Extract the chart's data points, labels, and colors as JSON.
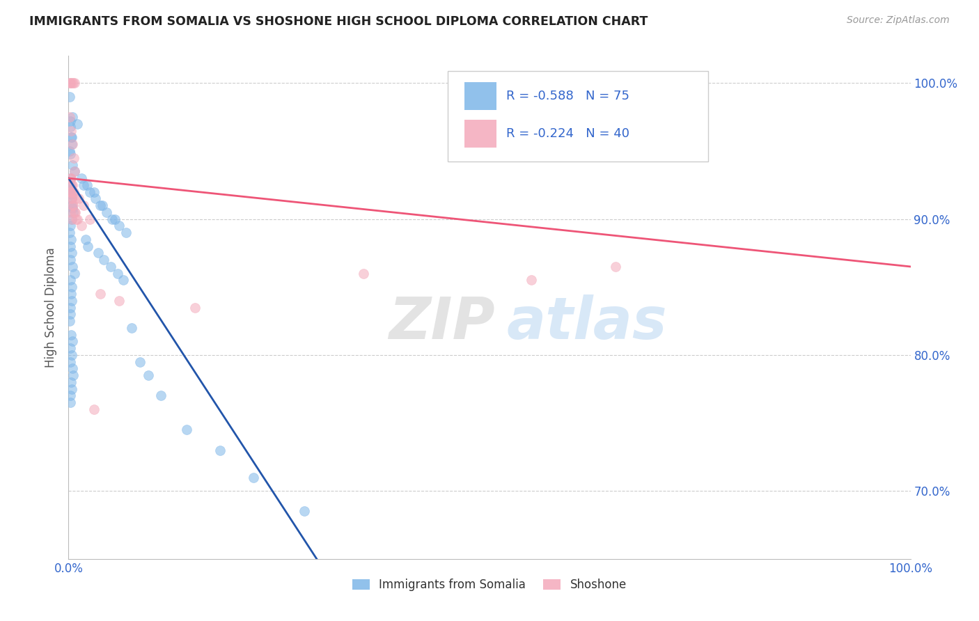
{
  "title": "IMMIGRANTS FROM SOMALIA VS SHOSHONE HIGH SCHOOL DIPLOMA CORRELATION CHART",
  "source_text": "Source: ZipAtlas.com",
  "ylabel": "High School Diploma",
  "blue_label": "Immigrants from Somalia",
  "pink_label": "Shoshone",
  "blue_R": "-0.588",
  "blue_N": "75",
  "pink_R": "-0.224",
  "pink_N": "40",
  "blue_color": "#7EB6E8",
  "pink_color": "#F4AABB",
  "blue_line_color": "#2255AA",
  "pink_line_color": "#EE5577",
  "watermark_zip": "ZIP",
  "watermark_atlas": "atlas",
  "background_color": "#FFFFFF",
  "legend_text_color": "#3366CC",
  "title_color": "#222222",
  "blue_scatter_x": [
    0.15,
    0.5,
    1.0,
    0.3,
    0.2,
    0.25,
    0.4,
    0.35,
    0.2,
    0.45,
    0.7,
    0.15,
    0.25,
    0.2,
    0.3,
    0.35,
    0.45,
    0.55,
    0.25,
    0.4,
    0.35,
    0.2,
    0.15,
    0.3,
    0.25,
    0.35,
    0.2,
    0.45,
    0.7,
    0.25,
    0.35,
    0.3,
    0.4,
    0.25,
    0.2,
    0.15,
    0.3,
    0.5,
    0.2,
    0.35,
    0.25,
    0.45,
    0.55,
    0.3,
    0.4,
    0.25,
    0.2,
    1.8,
    2.5,
    3.2,
    3.8,
    4.5,
    5.2,
    6.0,
    1.5,
    2.2,
    3.0,
    4.0,
    5.5,
    6.8,
    2.0,
    2.3,
    3.5,
    4.2,
    5.0,
    5.8,
    6.5,
    7.5,
    8.5,
    9.5,
    11.0,
    14.0,
    18.0,
    22.0,
    28.0
  ],
  "blue_scatter_y": [
    99.0,
    97.5,
    97.0,
    96.0,
    97.2,
    96.8,
    96.0,
    95.5,
    94.8,
    94.0,
    93.5,
    95.0,
    93.0,
    92.5,
    91.8,
    91.5,
    90.8,
    90.5,
    92.2,
    91.0,
    90.0,
    89.5,
    89.0,
    88.5,
    88.0,
    87.5,
    87.0,
    86.5,
    86.0,
    85.5,
    85.0,
    84.5,
    84.0,
    83.5,
    83.0,
    82.5,
    81.5,
    81.0,
    80.5,
    80.0,
    79.5,
    79.0,
    78.5,
    78.0,
    77.5,
    77.0,
    76.5,
    92.5,
    92.0,
    91.5,
    91.0,
    90.5,
    90.0,
    89.5,
    93.0,
    92.5,
    92.0,
    91.0,
    90.0,
    89.0,
    88.5,
    88.0,
    87.5,
    87.0,
    86.5,
    86.0,
    85.5,
    82.0,
    79.5,
    78.5,
    77.0,
    74.5,
    73.0,
    71.0,
    68.5
  ],
  "pink_scatter_x": [
    0.1,
    0.25,
    0.4,
    0.55,
    0.7,
    0.15,
    0.3,
    0.45,
    0.6,
    0.75,
    0.2,
    0.35,
    0.5,
    0.8,
    1.0,
    0.2,
    0.35,
    0.5,
    1.2,
    1.8,
    2.5,
    3.8,
    6.0,
    15.0,
    35.0,
    55.0,
    0.25,
    0.4,
    0.55,
    0.7,
    0.85,
    0.3,
    0.45,
    0.6,
    0.9,
    0.25,
    0.4,
    1.5,
    3.0,
    65.0
  ],
  "pink_scatter_y": [
    100.0,
    100.0,
    100.0,
    100.0,
    100.0,
    97.5,
    96.5,
    95.5,
    94.5,
    93.5,
    92.0,
    91.5,
    91.0,
    90.5,
    90.0,
    93.0,
    92.5,
    92.0,
    91.5,
    91.0,
    90.0,
    84.5,
    84.0,
    83.5,
    86.0,
    85.5,
    92.0,
    91.5,
    91.0,
    90.5,
    90.0,
    93.0,
    92.5,
    92.0,
    91.5,
    90.5,
    90.0,
    89.5,
    76.0,
    86.5
  ],
  "xlim_data": [
    0,
    30
  ],
  "xlim_display": [
    0,
    100
  ],
  "ylim": [
    65,
    102
  ],
  "yticks": [
    70,
    80,
    90,
    100
  ],
  "xticks": [
    0,
    100
  ],
  "grid_color": "#CCCCCC",
  "dot_size": 100,
  "dot_alpha": 0.55,
  "dot_linewidth": 1.2,
  "blue_line_x0": 0,
  "blue_line_y0": 93.0,
  "blue_line_x1": 30,
  "blue_line_y1": 64.5,
  "pink_line_x0": 0,
  "pink_line_y0": 93.0,
  "pink_line_x1": 100,
  "pink_line_y1": 86.5
}
